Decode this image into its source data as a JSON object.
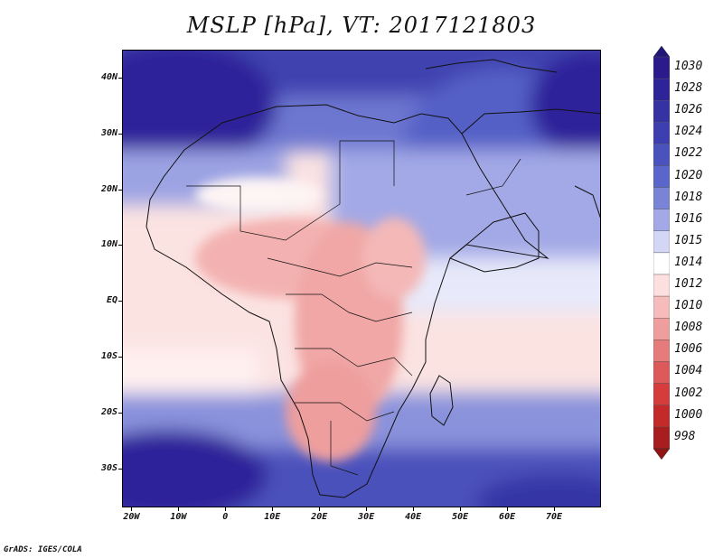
{
  "title": "MSLP [hPa], VT: 2017121803",
  "footer": "GrADS: IGES/COLA",
  "map": {
    "region": "Africa and Middle East",
    "lat_range": [
      -37,
      45
    ],
    "lon_range": [
      -22,
      80
    ],
    "lat_labels": [
      {
        "lat": 40,
        "text": "40N"
      },
      {
        "lat": 30,
        "text": "30N"
      },
      {
        "lat": 20,
        "text": "20N"
      },
      {
        "lat": 10,
        "text": "10N"
      },
      {
        "lat": 0,
        "text": "EQ"
      },
      {
        "lat": -10,
        "text": "10S"
      },
      {
        "lat": -20,
        "text": "20S"
      },
      {
        "lat": -30,
        "text": "30S"
      }
    ],
    "lon_labels": [
      {
        "lon": -20,
        "text": "20W"
      },
      {
        "lon": -10,
        "text": "10W"
      },
      {
        "lon": 0,
        "text": "0"
      },
      {
        "lon": 10,
        "text": "10E"
      },
      {
        "lon": 20,
        "text": "20E"
      },
      {
        "lon": 30,
        "text": "30E"
      },
      {
        "lon": 40,
        "text": "40E"
      },
      {
        "lon": 50,
        "text": "50E"
      },
      {
        "lon": 60,
        "text": "60E"
      },
      {
        "lon": 70,
        "text": "70E"
      }
    ]
  },
  "colorbar": {
    "levels": [
      {
        "label": "1030",
        "color": "#2a1a8c"
      },
      {
        "label": "1028",
        "color": "#2e2398"
      },
      {
        "label": "1026",
        "color": "#3532a4"
      },
      {
        "label": "1024",
        "color": "#3d3fb0"
      },
      {
        "label": "1022",
        "color": "#4a52bd"
      },
      {
        "label": "1020",
        "color": "#5a66c9"
      },
      {
        "label": "1018",
        "color": "#7a84d6"
      },
      {
        "label": "1016",
        "color": "#a3a9e6"
      },
      {
        "label": "1015",
        "color": "#d3d6f4"
      },
      {
        "label": "1014",
        "color": "#ffffff"
      },
      {
        "label": "1012",
        "color": "#fbe0df"
      },
      {
        "label": "1010",
        "color": "#f6bcbb"
      },
      {
        "label": "1008",
        "color": "#ee9e9d"
      },
      {
        "label": "1006",
        "color": "#e67b7b"
      },
      {
        "label": "1004",
        "color": "#de5a5a"
      },
      {
        "label": "1002",
        "color": "#d63c3c"
      },
      {
        "label": "1000",
        "color": "#c52a2a"
      },
      {
        "label": "998",
        "color": "#a81e1e"
      }
    ],
    "top_arrow_color": "#1f1679",
    "bottom_arrow_color": "#8f1515"
  }
}
